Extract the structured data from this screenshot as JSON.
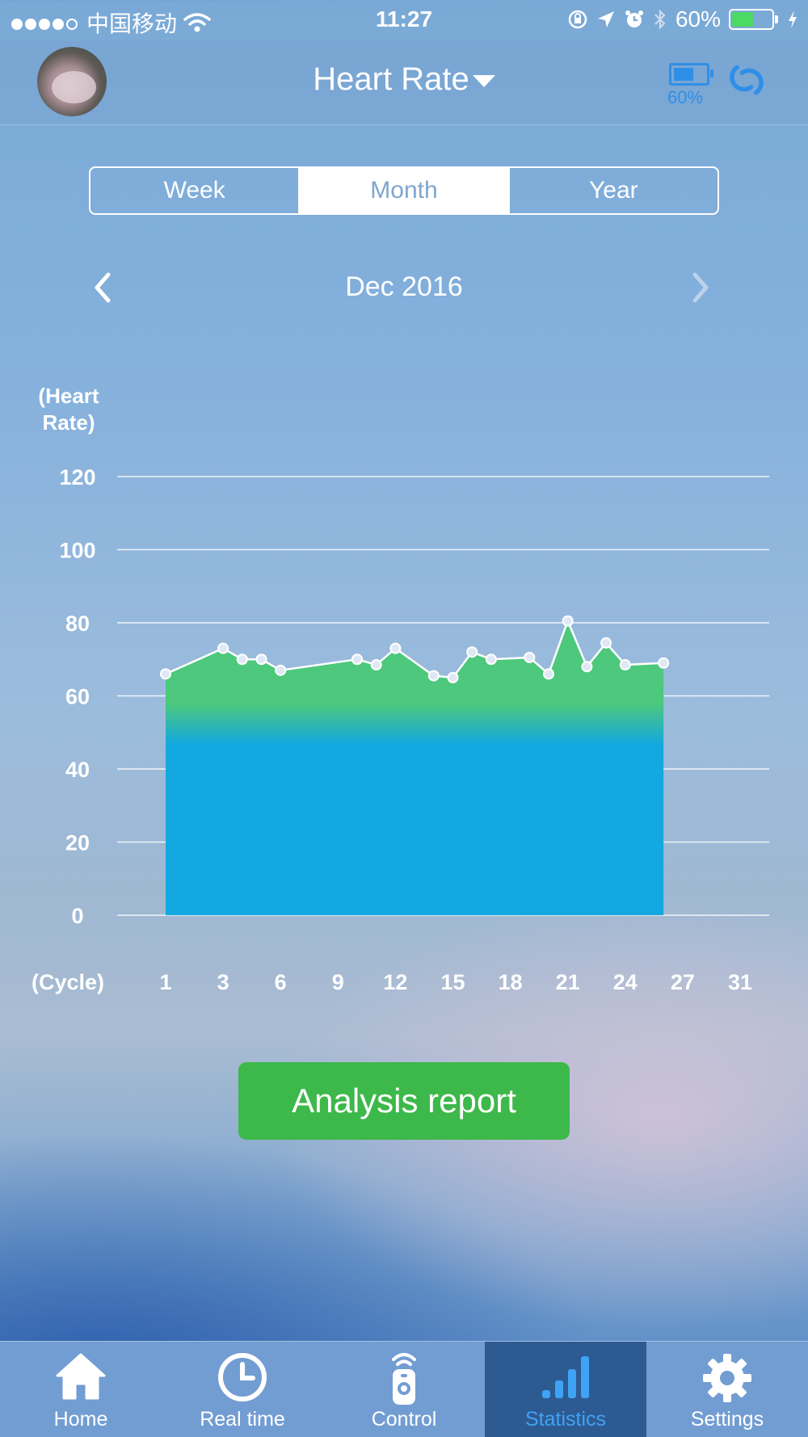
{
  "status_bar": {
    "carrier": "中国移动",
    "time": "11:27",
    "battery_percent": "60%",
    "battery_level": 0.6,
    "signal_bars": 4
  },
  "header": {
    "title": "Heart Rate",
    "device_battery": "60%",
    "device_battery_level": 0.6,
    "accent_color": "#2f8fe8"
  },
  "segments": {
    "items": [
      "Week",
      "Month",
      "Year"
    ],
    "selected": "Month"
  },
  "period": {
    "label": "Dec 2016"
  },
  "chart_data": {
    "type": "area",
    "ylabel": "(Heart Rate)",
    "xlabel": "(Cycle)",
    "ylim": [
      0,
      120
    ],
    "yticks": [
      120,
      100,
      80,
      60,
      40,
      20,
      0
    ],
    "xticks": [
      "1",
      "3",
      "6",
      "9",
      "12",
      "15",
      "18",
      "21",
      "24",
      "27",
      "31"
    ],
    "x": [
      1,
      4,
      5,
      6,
      7,
      11,
      12,
      13,
      15,
      16,
      17,
      18,
      20,
      21,
      22,
      23,
      24,
      25,
      27
    ],
    "values": [
      66,
      73,
      70,
      70,
      67,
      70,
      68.5,
      73,
      65.5,
      65,
      72,
      70,
      70.5,
      66,
      80.5,
      68,
      74.5,
      68.5,
      69
    ],
    "grid": true,
    "fill_colors": [
      "#4dc87c",
      "#14a8e0"
    ]
  },
  "actions": {
    "analysis_label": "Analysis report",
    "analysis_color": "#3db84a"
  },
  "tabbar": {
    "items": [
      {
        "label": "Home",
        "icon": "home-icon"
      },
      {
        "label": "Real time",
        "icon": "clock-icon"
      },
      {
        "label": "Control",
        "icon": "remote-icon"
      },
      {
        "label": "Statistics",
        "icon": "bar-chart-icon"
      },
      {
        "label": "Settings",
        "icon": "gear-icon"
      }
    ],
    "selected": "Statistics"
  }
}
